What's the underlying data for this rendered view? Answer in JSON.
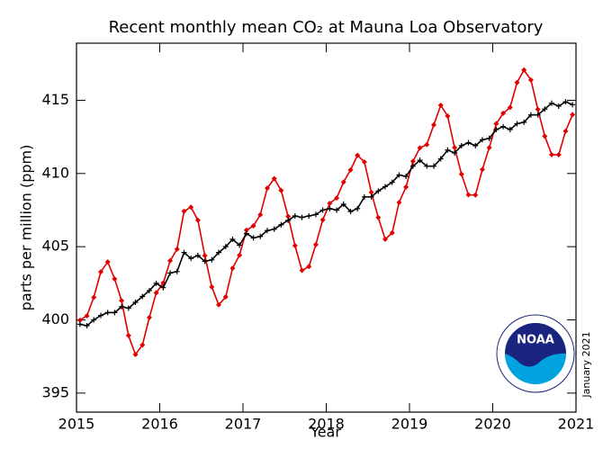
{
  "chart_data": {
    "type": "line",
    "title": "Recent monthly mean CO₂ at Mauna Loa Observatory",
    "x_label": "Year",
    "y_label": "parts per million (ppm)",
    "annotation": "January 2021",
    "logo_text": "NOAA",
    "xlim": [
      2015,
      2021
    ],
    "xticks": [
      2015,
      2016,
      2017,
      2018,
      2019,
      2020,
      2021
    ],
    "ylim": [
      393.7,
      418.9
    ],
    "yticks": [
      395,
      400,
      405,
      410,
      415
    ],
    "x": [
      2015.042,
      2015.125,
      2015.208,
      2015.292,
      2015.375,
      2015.458,
      2015.542,
      2015.625,
      2015.708,
      2015.792,
      2015.875,
      2015.958,
      2016.042,
      2016.125,
      2016.208,
      2016.292,
      2016.375,
      2016.458,
      2016.542,
      2016.625,
      2016.708,
      2016.792,
      2016.875,
      2016.958,
      2017.042,
      2017.125,
      2017.208,
      2017.292,
      2017.375,
      2017.458,
      2017.542,
      2017.625,
      2017.708,
      2017.792,
      2017.875,
      2017.958,
      2018.042,
      2018.125,
      2018.208,
      2018.292,
      2018.375,
      2018.458,
      2018.542,
      2018.625,
      2018.708,
      2018.792,
      2018.875,
      2018.958,
      2019.042,
      2019.125,
      2019.208,
      2019.292,
      2019.375,
      2019.458,
      2019.542,
      2019.625,
      2019.708,
      2019.792,
      2019.875,
      2019.958,
      2020.042,
      2020.125,
      2020.208,
      2020.292,
      2020.375,
      2020.458,
      2020.542,
      2020.625,
      2020.708,
      2020.792,
      2020.875,
      2020.958
    ],
    "series": [
      {
        "color": "#e00000",
        "marker": "diamond",
        "values": [
          399.98,
          400.28,
          401.54,
          403.28,
          403.96,
          402.8,
          401.31,
          398.93,
          397.63,
          398.29,
          400.16,
          401.85,
          402.52,
          404.04,
          404.83,
          407.42,
          407.7,
          406.81,
          404.39,
          402.25,
          401.03,
          401.57,
          403.53,
          404.42,
          406.13,
          406.42,
          407.18,
          409.0,
          409.65,
          408.84,
          407.07,
          405.07,
          403.38,
          403.64,
          405.14,
          406.83,
          407.96,
          408.32,
          409.41,
          410.24,
          411.24,
          410.79,
          408.71,
          406.99,
          405.51,
          405.95,
          408.02,
          409.07,
          410.83,
          411.75,
          411.97,
          413.32,
          414.66,
          413.92,
          411.77,
          409.95,
          408.54,
          408.53,
          410.27,
          411.76,
          413.4,
          414.11,
          414.51,
          416.21,
          417.07,
          416.39,
          414.38,
          412.55,
          411.29,
          411.28,
          412.89,
          414.02
        ]
      },
      {
        "color": "#000000",
        "marker": "cross",
        "values": [
          399.7,
          399.6,
          400.0,
          400.3,
          400.5,
          400.5,
          400.9,
          400.8,
          401.2,
          401.6,
          402.0,
          402.5,
          402.2,
          403.2,
          403.3,
          404.6,
          404.2,
          404.4,
          404.0,
          404.1,
          404.6,
          405.0,
          405.5,
          405.1,
          405.9,
          405.6,
          405.7,
          406.1,
          406.2,
          406.5,
          406.8,
          407.1,
          407.0,
          407.1,
          407.2,
          407.5,
          407.6,
          407.5,
          407.9,
          407.4,
          407.6,
          408.4,
          408.4,
          408.8,
          409.1,
          409.4,
          409.9,
          409.8,
          410.5,
          410.9,
          410.5,
          410.5,
          411.0,
          411.6,
          411.4,
          411.9,
          412.1,
          411.9,
          412.3,
          412.4,
          413.0,
          413.2,
          413.0,
          413.4,
          413.5,
          414.0,
          414.0,
          414.4,
          414.8,
          414.6,
          414.9,
          414.7
        ]
      }
    ]
  }
}
